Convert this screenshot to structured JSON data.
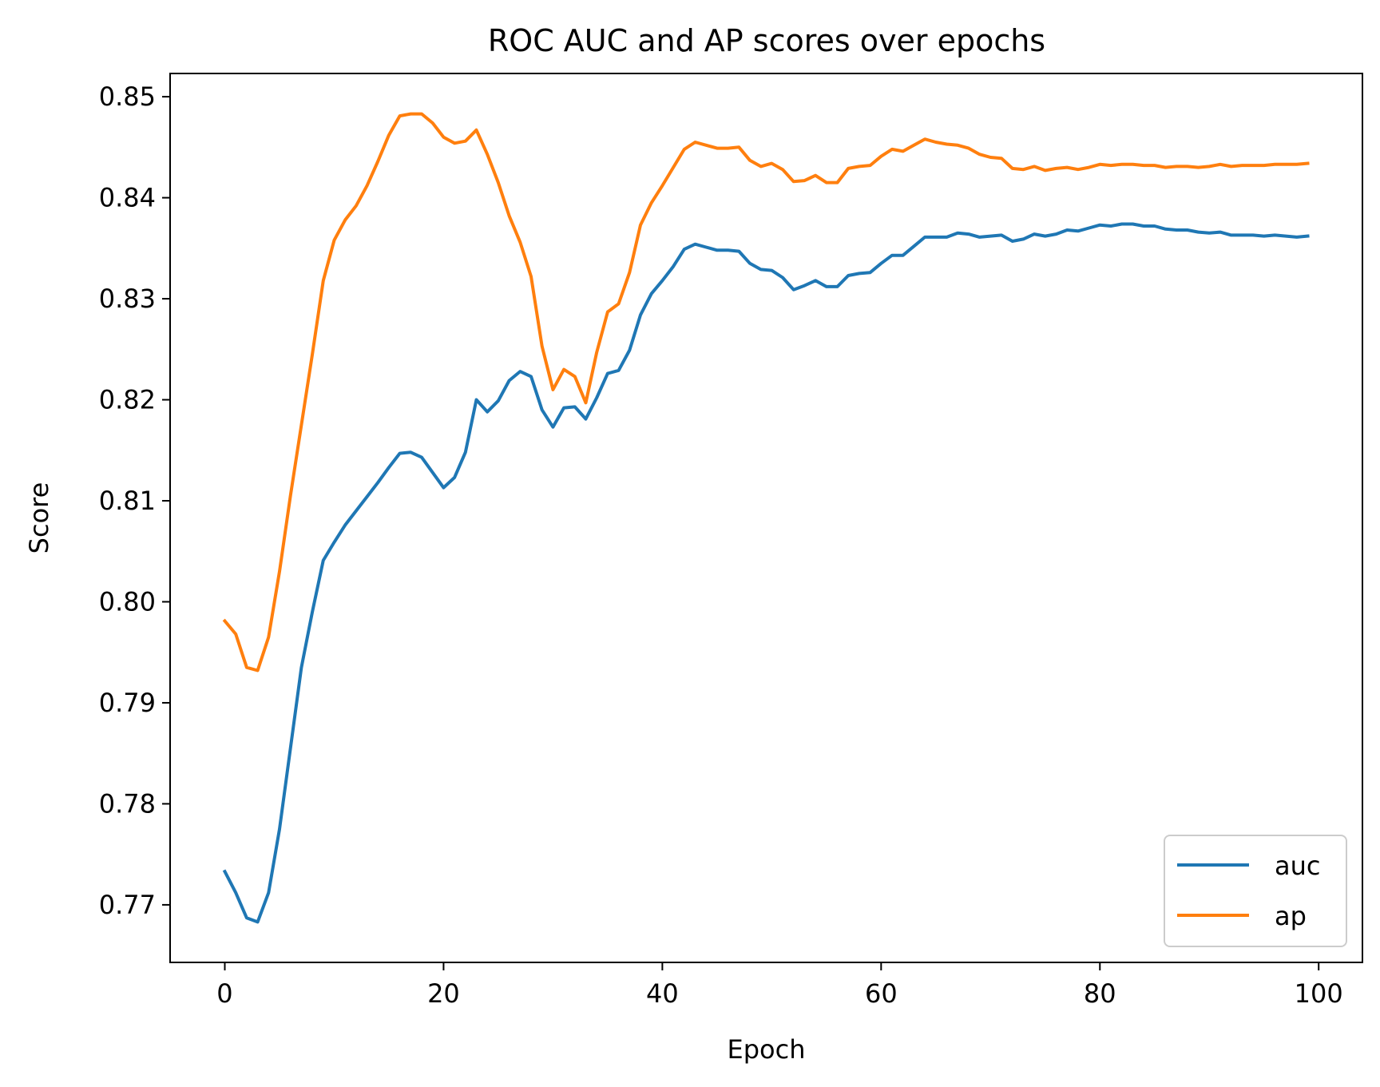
{
  "chart_data": {
    "type": "line",
    "title": "ROC AUC and AP scores over epochs",
    "xlabel": "Epoch",
    "ylabel": "Score",
    "xlim": [
      -5,
      104
    ],
    "ylim": [
      0.7643,
      0.8523
    ],
    "xticks": [
      0,
      20,
      40,
      60,
      80,
      100
    ],
    "xtick_labels": [
      "0",
      "20",
      "40",
      "60",
      "80",
      "100"
    ],
    "yticks": [
      0.77,
      0.78,
      0.79,
      0.8,
      0.81,
      0.82,
      0.83,
      0.84,
      0.85
    ],
    "ytick_labels": [
      "0.77",
      "0.78",
      "0.79",
      "0.80",
      "0.81",
      "0.82",
      "0.83",
      "0.84",
      "0.85"
    ],
    "grid": false,
    "legend_position": "lower-right",
    "x": [
      0,
      1,
      2,
      3,
      4,
      5,
      6,
      7,
      8,
      9,
      10,
      11,
      12,
      13,
      14,
      15,
      16,
      17,
      18,
      19,
      20,
      21,
      22,
      23,
      24,
      25,
      26,
      27,
      28,
      29,
      30,
      31,
      32,
      33,
      34,
      35,
      36,
      37,
      38,
      39,
      40,
      41,
      42,
      43,
      44,
      45,
      46,
      47,
      48,
      49,
      50,
      51,
      52,
      53,
      54,
      55,
      56,
      57,
      58,
      59,
      60,
      61,
      62,
      63,
      64,
      65,
      66,
      67,
      68,
      69,
      70,
      71,
      72,
      73,
      74,
      75,
      76,
      77,
      78,
      79,
      80,
      81,
      82,
      83,
      84,
      85,
      86,
      87,
      88,
      89,
      90,
      91,
      92,
      93,
      94,
      95,
      96,
      97,
      98,
      99
    ],
    "series": [
      {
        "name": "auc",
        "color": "#1f77b4",
        "values": [
          0.7733,
          0.7712,
          0.7687,
          0.7683,
          0.7712,
          0.7775,
          0.7855,
          0.7935,
          0.799,
          0.8041,
          0.8059,
          0.8076,
          0.809,
          0.8104,
          0.8118,
          0.8133,
          0.8147,
          0.8148,
          0.8143,
          0.8128,
          0.8113,
          0.8123,
          0.8148,
          0.82,
          0.8188,
          0.8199,
          0.8219,
          0.8228,
          0.8223,
          0.819,
          0.8173,
          0.8192,
          0.8193,
          0.8181,
          0.8202,
          0.8226,
          0.8229,
          0.8249,
          0.8284,
          0.8305,
          0.8318,
          0.8332,
          0.8349,
          0.8354,
          0.8351,
          0.8348,
          0.8348,
          0.8347,
          0.8335,
          0.8329,
          0.8328,
          0.8321,
          0.8309,
          0.8313,
          0.8318,
          0.8312,
          0.8312,
          0.8323,
          0.8325,
          0.8326,
          0.8335,
          0.8343,
          0.8343,
          0.8352,
          0.8361,
          0.8361,
          0.8361,
          0.8365,
          0.8364,
          0.8361,
          0.8362,
          0.8363,
          0.8357,
          0.8359,
          0.8364,
          0.8362,
          0.8364,
          0.8368,
          0.8367,
          0.837,
          0.8373,
          0.8372,
          0.8374,
          0.8374,
          0.8372,
          0.8372,
          0.8369,
          0.8368,
          0.8368,
          0.8366,
          0.8365,
          0.8366,
          0.8363,
          0.8363,
          0.8363,
          0.8362,
          0.8363,
          0.8362,
          0.8361,
          0.8362
        ]
      },
      {
        "name": "ap",
        "color": "#ff7f0e",
        "values": [
          0.7981,
          0.7968,
          0.7935,
          0.7932,
          0.7965,
          0.803,
          0.8105,
          0.8175,
          0.8245,
          0.8318,
          0.8358,
          0.8378,
          0.8392,
          0.8412,
          0.8436,
          0.8462,
          0.8481,
          0.8483,
          0.8483,
          0.8474,
          0.846,
          0.8454,
          0.8456,
          0.8467,
          0.8443,
          0.8415,
          0.8382,
          0.8356,
          0.8322,
          0.8253,
          0.821,
          0.823,
          0.8223,
          0.8197,
          0.8247,
          0.8287,
          0.8295,
          0.8326,
          0.8373,
          0.8395,
          0.8412,
          0.843,
          0.8448,
          0.8455,
          0.8452,
          0.8449,
          0.8449,
          0.845,
          0.8437,
          0.8431,
          0.8434,
          0.8428,
          0.8416,
          0.8417,
          0.8422,
          0.8415,
          0.8415,
          0.8429,
          0.8431,
          0.8432,
          0.8441,
          0.8448,
          0.8446,
          0.8452,
          0.8458,
          0.8455,
          0.8453,
          0.8452,
          0.8449,
          0.8443,
          0.844,
          0.8439,
          0.8429,
          0.8428,
          0.8431,
          0.8427,
          0.8429,
          0.843,
          0.8428,
          0.843,
          0.8433,
          0.8432,
          0.8433,
          0.8433,
          0.8432,
          0.8432,
          0.843,
          0.8431,
          0.8431,
          0.843,
          0.8431,
          0.8433,
          0.8431,
          0.8432,
          0.8432,
          0.8432,
          0.8433,
          0.8433,
          0.8433,
          0.8434
        ]
      }
    ]
  }
}
